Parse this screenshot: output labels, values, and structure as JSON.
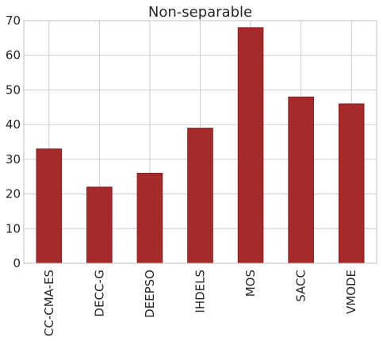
{
  "chart_data": {
    "type": "bar",
    "title": "Non-separable",
    "categories": [
      "CC-CMA-ES",
      "DECC-G",
      "DEEPSO",
      "IHDELS",
      "MOS",
      "SACC",
      "VMODE"
    ],
    "values": [
      33,
      22,
      26,
      39,
      68,
      48,
      46
    ],
    "xlabel": "",
    "ylabel": "",
    "ylim": [
      0,
      70
    ],
    "yticks": [
      0,
      10,
      20,
      30,
      40,
      50,
      60,
      70
    ],
    "grid": true,
    "bar_color": "#a52a2a"
  }
}
